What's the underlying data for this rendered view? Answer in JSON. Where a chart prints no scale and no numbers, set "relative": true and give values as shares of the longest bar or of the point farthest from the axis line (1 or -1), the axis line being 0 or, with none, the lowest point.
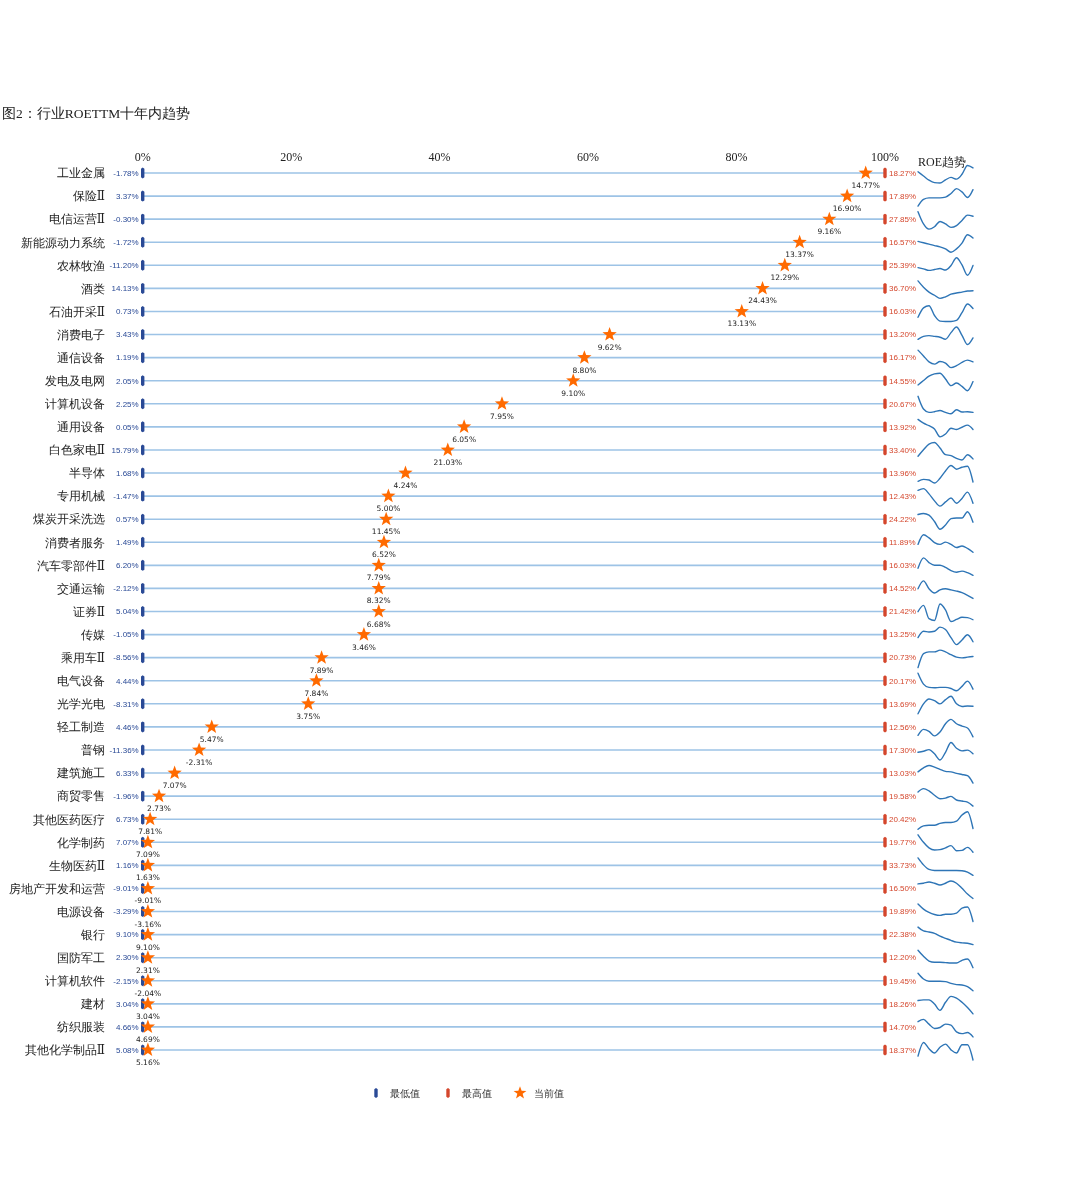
{
  "chart_data": [
    {
      "type": "scatter",
      "title": "图2：行业ROETTM十年内趋势",
      "orientation": "horizontal",
      "categories": [
        "工业金属",
        "保险Ⅱ",
        "电信运营Ⅱ",
        "新能源动力系统",
        "农林牧渔",
        "酒类",
        "石油开采Ⅱ",
        "消费电子",
        "通信设备",
        "发电及电网",
        "计算机设备",
        "通用设备",
        "白色家电Ⅱ",
        "半导体",
        "专用机械",
        "煤炭开采洗选",
        "消费者服务",
        "汽车零部件Ⅱ",
        "交通运输",
        "证券Ⅱ",
        "传媒",
        "乘用车Ⅱ",
        "电气设备",
        "光学光电",
        "轻工制造",
        "普钢",
        "建筑施工",
        "商贸零售",
        "其他医药医疗",
        "化学制药",
        "生物医药Ⅱ",
        "房地产开发和运营",
        "电源设备",
        "银行",
        "国防军工",
        "计算机软件",
        "建材",
        "纺织服装",
        "其他化学制品Ⅱ"
      ],
      "xlim": [
        0,
        100
      ],
      "xticks": [
        {
          "value": 0,
          "label": "0%"
        },
        {
          "value": 20,
          "label": "20%"
        },
        {
          "value": 40,
          "label": "40%"
        },
        {
          "value": 60,
          "label": "60%"
        },
        {
          "value": 80,
          "label": "80%"
        },
        {
          "value": 100,
          "label": "100%"
        }
      ],
      "grid": "y",
      "legend": "bottom",
      "series": [
        {
          "name": "最低值",
          "color": "#2a4a96",
          "values": [
            0,
            0,
            0,
            0,
            0,
            0,
            0,
            0,
            0,
            0,
            0,
            0,
            0,
            0,
            0,
            0,
            0,
            0,
            0,
            0,
            0,
            0,
            0,
            0,
            0,
            0,
            0,
            0,
            0,
            0,
            0,
            0,
            0,
            0,
            0,
            0,
            0,
            0,
            0
          ]
        },
        {
          "name": "最高值",
          "color": "#d4462c",
          "values": [
            100,
            100,
            100,
            100,
            100,
            100,
            100,
            100,
            100,
            100,
            100,
            100,
            100,
            100,
            100,
            100,
            100,
            100,
            100,
            100,
            100,
            100,
            100,
            100,
            100,
            100,
            100,
            100,
            100,
            100,
            100,
            100,
            100,
            100,
            100,
            100,
            100,
            100,
            100
          ]
        },
        {
          "name": "当前值",
          "color": "#ff6a00",
          "marker": "star",
          "values": [
            97.4,
            94.9,
            92.5,
            88.5,
            86.5,
            83.5,
            80.7,
            62.9,
            59.5,
            58.0,
            48.4,
            43.3,
            41.1,
            35.4,
            33.1,
            32.8,
            32.5,
            31.8,
            31.8,
            31.8,
            29.8,
            24.1,
            23.4,
            22.3,
            9.3,
            7.6,
            4.3,
            2.2,
            1.0,
            0.7,
            0.7,
            0.7,
            0.7,
            0.7,
            0.7,
            0.7,
            0.7,
            0.7,
            0.7
          ]
        }
      ],
      "annotations": [
        {
          "text": "-1.78%",
          "x": 0,
          "y": "工业金属"
        },
        {
          "text": "3.37%",
          "x": 0,
          "y": "保险Ⅱ"
        },
        {
          "text": "-0.30%",
          "x": 0,
          "y": "电信运营Ⅱ"
        },
        {
          "text": "-1.72%",
          "x": 0,
          "y": "新能源动力系统"
        },
        {
          "text": "-11.20%",
          "x": 0,
          "y": "农林牧渔"
        },
        {
          "text": "14.13%",
          "x": 0,
          "y": "酒类"
        },
        {
          "text": "0.73%",
          "x": 0,
          "y": "石油开采Ⅱ"
        },
        {
          "text": "3.43%",
          "x": 0,
          "y": "消费电子"
        },
        {
          "text": "1.19%",
          "x": 0,
          "y": "通信设备"
        },
        {
          "text": "2.05%",
          "x": 0,
          "y": "发电及电网"
        },
        {
          "text": "2.25%",
          "x": 0,
          "y": "计算机设备"
        },
        {
          "text": "0.05%",
          "x": 0,
          "y": "通用设备"
        },
        {
          "text": "15.79%",
          "x": 0,
          "y": "白色家电Ⅱ"
        },
        {
          "text": "1.68%",
          "x": 0,
          "y": "半导体"
        },
        {
          "text": "-1.47%",
          "x": 0,
          "y": "专用机械"
        },
        {
          "text": "0.57%",
          "x": 0,
          "y": "煤炭开采洗选"
        },
        {
          "text": "1.49%",
          "x": 0,
          "y": "消费者服务"
        },
        {
          "text": "6.20%",
          "x": 0,
          "y": "汽车零部件Ⅱ"
        },
        {
          "text": "-2.12%",
          "x": 0,
          "y": "交通运输"
        },
        {
          "text": "5.04%",
          "x": 0,
          "y": "证券Ⅱ"
        },
        {
          "text": "-1.05%",
          "x": 0,
          "y": "传媒"
        },
        {
          "text": "-8.56%",
          "x": 0,
          "y": "乘用车Ⅱ"
        },
        {
          "text": "4.44%",
          "x": 0,
          "y": "电气设备"
        },
        {
          "text": "-8.31%",
          "x": 0,
          "y": "光学光电"
        },
        {
          "text": "4.46%",
          "x": 0,
          "y": "轻工制造"
        },
        {
          "text": "-11.36%",
          "x": 0,
          "y": "普钢"
        },
        {
          "text": "6.33%",
          "x": 0,
          "y": "建筑施工"
        },
        {
          "text": "-1.96%",
          "x": 0,
          "y": "商贸零售"
        },
        {
          "text": "6.73%",
          "x": 0,
          "y": "其他医药医疗"
        },
        {
          "text": "7.07%",
          "x": 0,
          "y": "化学制药"
        },
        {
          "text": "1.16%",
          "x": 0,
          "y": "生物医药Ⅱ"
        },
        {
          "text": "-9.01%",
          "x": 0,
          "y": "房地产开发和运营"
        },
        {
          "text": "-3.29%",
          "x": 0,
          "y": "电源设备"
        },
        {
          "text": "9.10%",
          "x": 0,
          "y": "银行"
        },
        {
          "text": "2.30%",
          "x": 0,
          "y": "国防军工"
        },
        {
          "text": "-2.15%",
          "x": 0,
          "y": "计算机软件"
        },
        {
          "text": "3.04%",
          "x": 0,
          "y": "建材"
        },
        {
          "text": "4.66%",
          "x": 0,
          "y": "纺织服装"
        },
        {
          "text": "5.08%",
          "x": 0,
          "y": "其他化学制品Ⅱ"
        },
        {
          "text": "18.27%",
          "x": 100,
          "y": "工业金属"
        },
        {
          "text": "17.89%",
          "x": 100,
          "y": "保险Ⅱ"
        },
        {
          "text": "27.85%",
          "x": 100,
          "y": "电信运营Ⅱ"
        },
        {
          "text": "16.57%",
          "x": 100,
          "y": "新能源动力系统"
        },
        {
          "text": "25.39%",
          "x": 100,
          "y": "农林牧渔"
        },
        {
          "text": "36.70%",
          "x": 100,
          "y": "酒类"
        },
        {
          "text": "16.03%",
          "x": 100,
          "y": "石油开采Ⅱ"
        },
        {
          "text": "13.20%",
          "x": 100,
          "y": "消费电子"
        },
        {
          "text": "16.17%",
          "x": 100,
          "y": "通信设备"
        },
        {
          "text": "14.55%",
          "x": 100,
          "y": "发电及电网"
        },
        {
          "text": "20.67%",
          "x": 100,
          "y": "计算机设备"
        },
        {
          "text": "13.92%",
          "x": 100,
          "y": "通用设备"
        },
        {
          "text": "33.40%",
          "x": 100,
          "y": "白色家电Ⅱ"
        },
        {
          "text": "13.96%",
          "x": 100,
          "y": "半导体"
        },
        {
          "text": "12.43%",
          "x": 100,
          "y": "专用机械"
        },
        {
          "text": "24.22%",
          "x": 100,
          "y": "煤炭开采洗选"
        },
        {
          "text": "11.89%",
          "x": 100,
          "y": "消费者服务"
        },
        {
          "text": "16.03%",
          "x": 100,
          "y": "汽车零部件Ⅱ"
        },
        {
          "text": "14.52%",
          "x": 100,
          "y": "交通运输"
        },
        {
          "text": "21.42%",
          "x": 100,
          "y": "证券Ⅱ"
        },
        {
          "text": "13.25%",
          "x": 100,
          "y": "传媒"
        },
        {
          "text": "20.73%",
          "x": 100,
          "y": "乘用车Ⅱ"
        },
        {
          "text": "20.17%",
          "x": 100,
          "y": "电气设备"
        },
        {
          "text": "13.69%",
          "x": 100,
          "y": "光学光电"
        },
        {
          "text": "12.56%",
          "x": 100,
          "y": "轻工制造"
        },
        {
          "text": "17.30%",
          "x": 100,
          "y": "普钢"
        },
        {
          "text": "13.03%",
          "x": 100,
          "y": "建筑施工"
        },
        {
          "text": "19.58%",
          "x": 100,
          "y": "商贸零售"
        },
        {
          "text": "20.42%",
          "x": 100,
          "y": "其他医药医疗"
        },
        {
          "text": "19.77%",
          "x": 100,
          "y": "化学制药"
        },
        {
          "text": "33.73%",
          "x": 100,
          "y": "生物医药Ⅱ"
        },
        {
          "text": "16.50%",
          "x": 100,
          "y": "房地产开发和运营"
        },
        {
          "text": "19.89%",
          "x": 100,
          "y": "电源设备"
        },
        {
          "text": "22.38%",
          "x": 100,
          "y": "银行"
        },
        {
          "text": "12.20%",
          "x": 100,
          "y": "国防军工"
        },
        {
          "text": "19.45%",
          "x": 100,
          "y": "计算机软件"
        },
        {
          "text": "18.26%",
          "x": 100,
          "y": "建材"
        },
        {
          "text": "14.70%",
          "x": 100,
          "y": "纺织服装"
        },
        {
          "text": "18.37%",
          "x": 100,
          "y": "其他化学制品Ⅱ"
        },
        {
          "text": "14.77%",
          "x": 97.4,
          "y": "工业金属"
        },
        {
          "text": "16.90%",
          "x": 94.9,
          "y": "保险Ⅱ"
        },
        {
          "text": "9.16%",
          "x": 92.5,
          "y": "电信运营Ⅱ"
        },
        {
          "text": "13.37%",
          "x": 88.5,
          "y": "新能源动力系统"
        },
        {
          "text": "12.29%",
          "x": 86.5,
          "y": "农林牧渔"
        },
        {
          "text": "24.43%",
          "x": 83.5,
          "y": "酒类"
        },
        {
          "text": "13.13%",
          "x": 80.7,
          "y": "石油开采Ⅱ"
        },
        {
          "text": "9.62%",
          "x": 62.9,
          "y": "消费电子"
        },
        {
          "text": "8.80%",
          "x": 59.5,
          "y": "通信设备"
        },
        {
          "text": "9.10%",
          "x": 58.0,
          "y": "发电及电网"
        },
        {
          "text": "7.95%",
          "x": 48.4,
          "y": "计算机设备"
        },
        {
          "text": "6.05%",
          "x": 43.3,
          "y": "通用设备"
        },
        {
          "text": "21.03%",
          "x": 41.1,
          "y": "白色家电Ⅱ"
        },
        {
          "text": "4.24%",
          "x": 35.4,
          "y": "半导体"
        },
        {
          "text": "5.00%",
          "x": 33.1,
          "y": "专用机械"
        },
        {
          "text": "11.45%",
          "x": 32.8,
          "y": "煤炭开采洗选"
        },
        {
          "text": "6.52%",
          "x": 32.5,
          "y": "消费者服务"
        },
        {
          "text": "7.79%",
          "x": 31.8,
          "y": "汽车零部件Ⅱ"
        },
        {
          "text": "8.32%",
          "x": 31.8,
          "y": "交通运输"
        },
        {
          "text": "6.68%",
          "x": 31.8,
          "y": "证券Ⅱ"
        },
        {
          "text": "3.46%",
          "x": 29.8,
          "y": "传媒"
        },
        {
          "text": "7.89%",
          "x": 24.1,
          "y": "乘用车Ⅱ"
        },
        {
          "text": "7.84%",
          "x": 23.4,
          "y": "电气设备"
        },
        {
          "text": "3.75%",
          "x": 22.3,
          "y": "光学光电"
        },
        {
          "text": "5.47%",
          "x": 9.3,
          "y": "轻工制造"
        },
        {
          "text": "-2.31%",
          "x": 7.6,
          "y": "普钢"
        },
        {
          "text": "7.07%",
          "x": 4.3,
          "y": "建筑施工"
        },
        {
          "text": "2.73%",
          "x": 2.2,
          "y": "商贸零售"
        },
        {
          "text": "7.81%",
          "x": 1.0,
          "y": "其他医药医疗"
        },
        {
          "text": "7.09%",
          "x": 0.7,
          "y": "化学制药"
        },
        {
          "text": "1.63%",
          "x": 0.7,
          "y": "生物医药Ⅱ"
        },
        {
          "text": "-9.01%",
          "x": 0.7,
          "y": "房地产开发和运营"
        },
        {
          "text": "-3.16%",
          "x": 0.7,
          "y": "电源设备"
        },
        {
          "text": "9.10%",
          "x": 0.7,
          "y": "银行"
        },
        {
          "text": "2.31%",
          "x": 0.7,
          "y": "国防军工"
        },
        {
          "text": "-2.04%",
          "x": 0.7,
          "y": "计算机软件"
        },
        {
          "text": "3.04%",
          "x": 0.7,
          "y": "建材"
        },
        {
          "text": "4.69%",
          "x": 0.7,
          "y": "纺织服装"
        },
        {
          "text": "5.16%",
          "x": 0.7,
          "y": "其他化学制品Ⅱ"
        }
      ]
    },
    {
      "type": "line",
      "relative": true,
      "title": "ROE趋势",
      "categories": [
        null,
        null,
        null,
        null,
        null,
        null,
        null,
        null,
        null,
        null,
        null
      ],
      "series": [
        {
          "color": "#2e75b6",
          "values": [
            0.64,
            0.4,
            0.16,
            0.02,
            0,
            0.18,
            0.32,
            0.22,
            0.5,
            1,
            0.86
          ]
        }
      ]
    },
    {
      "type": "line",
      "relative": true,
      "categories": [
        null,
        null,
        null,
        null,
        null,
        null,
        null,
        null,
        null,
        null,
        null
      ],
      "series": [
        {
          "color": "#2e75b6",
          "values": [
            0,
            0.38,
            0.47,
            0.47,
            0.47,
            0.51,
            0.72,
            1,
            0.81,
            0.49,
            0.94
          ]
        }
      ]
    },
    {
      "type": "line",
      "relative": true,
      "categories": [
        null,
        null,
        null,
        null,
        null,
        null,
        null,
        null,
        null,
        null,
        null
      ],
      "series": [
        {
          "color": "#2e75b6",
          "values": [
            1,
            0.3,
            0,
            0.14,
            0.44,
            0.3,
            0.1,
            0.2,
            0.5,
            0.8,
            0.74
          ]
        }
      ]
    },
    {
      "type": "line",
      "relative": true,
      "categories": [
        null,
        null,
        null,
        null,
        null,
        null,
        null,
        null,
        null,
        null,
        null
      ],
      "series": [
        {
          "color": "#2e75b6",
          "values": [
            0.62,
            0.54,
            0.46,
            0.38,
            0.31,
            0.19,
            0,
            0.19,
            0.52,
            1,
            0.81
          ]
        }
      ]
    },
    {
      "type": "line",
      "relative": true,
      "categories": [
        null,
        null,
        null,
        null,
        null,
        null,
        null,
        null,
        null,
        null,
        null
      ],
      "series": [
        {
          "color": "#2e75b6",
          "values": [
            0.44,
            0.37,
            0.28,
            0.33,
            0.39,
            0.3,
            0.56,
            1,
            0.59,
            0,
            0.56
          ]
        }
      ]
    },
    {
      "type": "line",
      "relative": true,
      "categories": [
        null,
        null,
        null,
        null,
        null,
        null,
        null,
        null,
        null,
        null,
        null
      ],
      "series": [
        {
          "color": "#2e75b6",
          "values": [
            1,
            0.64,
            0.36,
            0.18,
            0,
            0.09,
            0.24,
            0.31,
            0.36,
            0.42,
            0.44
          ]
        }
      ]
    },
    {
      "type": "line",
      "relative": true,
      "categories": [
        null,
        null,
        null,
        null,
        null,
        null,
        null,
        null,
        null,
        null,
        null
      ],
      "series": [
        {
          "color": "#2e75b6",
          "values": [
            0.24,
            0.78,
            0.9,
            0.34,
            0.02,
            0,
            0,
            0.06,
            0.5,
            1,
            0.74
          ]
        }
      ]
    },
    {
      "type": "line",
      "relative": true,
      "categories": [
        null,
        null,
        null,
        null,
        null,
        null,
        null,
        null,
        null,
        null,
        null
      ],
      "series": [
        {
          "color": "#2e75b6",
          "values": [
            0.3,
            0.47,
            0.51,
            0.47,
            0.42,
            0.3,
            0.68,
            1,
            0.53,
            0,
            0.38
          ]
        }
      ]
    },
    {
      "type": "line",
      "relative": true,
      "categories": [
        null,
        null,
        null,
        null,
        null,
        null,
        null,
        null,
        null,
        null,
        null
      ],
      "series": [
        {
          "color": "#2e75b6",
          "values": [
            1,
            0.67,
            0.33,
            0.2,
            0.35,
            0.26,
            0,
            0.11,
            0.3,
            0.43,
            0.33
          ]
        }
      ]
    },
    {
      "type": "line",
      "relative": true,
      "categories": [
        null,
        null,
        null,
        null,
        null,
        null,
        null,
        null,
        null,
        null,
        null
      ],
      "series": [
        {
          "color": "#2e75b6",
          "values": [
            0.33,
            0.58,
            0.83,
            0.96,
            1,
            0.67,
            0.29,
            0.44,
            0.25,
            0,
            0.52
          ]
        }
      ]
    },
    {
      "type": "line",
      "relative": true,
      "categories": [
        null,
        null,
        null,
        null,
        null,
        null,
        null,
        null,
        null,
        null,
        null
      ],
      "series": [
        {
          "color": "#2e75b6",
          "values": [
            1,
            0.27,
            0.08,
            0.12,
            0.19,
            0.08,
            0,
            0.23,
            0.1,
            0.12,
            0.08
          ]
        }
      ]
    },
    {
      "type": "line",
      "relative": true,
      "categories": [
        null,
        null,
        null,
        null,
        null,
        null,
        null,
        null,
        null,
        null,
        null
      ],
      "series": [
        {
          "color": "#2e75b6",
          "values": [
            1,
            0.78,
            0.64,
            0.45,
            0,
            0.16,
            0.49,
            0.42,
            0.55,
            0.67,
            0.42
          ]
        }
      ]
    },
    {
      "type": "line",
      "relative": true,
      "categories": [
        null,
        null,
        null,
        null,
        null,
        null,
        null,
        null,
        null,
        null,
        null
      ],
      "series": [
        {
          "color": "#2e75b6",
          "values": [
            0.21,
            0.58,
            0.91,
            1,
            0.68,
            0.3,
            0.25,
            0.09,
            0,
            0.3,
            0.06
          ]
        }
      ]
    },
    {
      "type": "line",
      "relative": true,
      "categories": [
        null,
        null,
        null,
        null,
        null,
        null,
        null,
        null,
        null,
        null,
        null
      ],
      "series": [
        {
          "color": "#2e75b6",
          "values": [
            0.1,
            0.21,
            0.17,
            0,
            0.27,
            0.69,
            1,
            0.79,
            0.9,
            0.96,
            0.06
          ]
        }
      ]
    },
    {
      "type": "line",
      "relative": true,
      "categories": [
        null,
        null,
        null,
        null,
        null,
        null,
        null,
        null,
        null,
        null,
        null
      ],
      "series": [
        {
          "color": "#2e75b6",
          "values": [
            0.9,
            1,
            0.7,
            0.3,
            0,
            0.24,
            0.46,
            0.16,
            0.44,
            0.8,
            0.16
          ]
        }
      ]
    },
    {
      "type": "line",
      "relative": true,
      "categories": [
        null,
        null,
        null,
        null,
        null,
        null,
        null,
        null,
        null,
        null,
        null
      ],
      "series": [
        {
          "color": "#2e75b6",
          "values": [
            0.84,
            0.9,
            0.8,
            0.44,
            0,
            0.24,
            0.6,
            0.64,
            0.64,
            1,
            0.4
          ]
        }
      ]
    },
    {
      "type": "line",
      "relative": true,
      "categories": [
        null,
        null,
        null,
        null,
        null,
        null,
        null,
        null,
        null,
        null,
        null
      ],
      "series": [
        {
          "color": "#2e75b6",
          "values": [
            0.45,
            1,
            0.82,
            0.55,
            0.45,
            0.58,
            0.45,
            0.27,
            0.36,
            0.22,
            0
          ]
        }
      ]
    },
    {
      "type": "line",
      "relative": true,
      "categories": [
        null,
        null,
        null,
        null,
        null,
        null,
        null,
        null,
        null,
        null,
        null
      ],
      "series": [
        {
          "color": "#2e75b6",
          "values": [
            0.4,
            1,
            0.73,
            0.58,
            0.58,
            0.45,
            0.27,
            0.18,
            0.24,
            0.15,
            0
          ]
        }
      ]
    },
    {
      "type": "line",
      "relative": true,
      "categories": [
        null,
        null,
        null,
        null,
        null,
        null,
        null,
        null,
        null,
        null,
        null
      ],
      "series": [
        {
          "color": "#2e75b6",
          "values": [
            0.55,
            1,
            0.55,
            0.31,
            0.49,
            0.55,
            0.49,
            0.42,
            0.33,
            0.18,
            0
          ]
        }
      ]
    },
    {
      "type": "line",
      "relative": true,
      "categories": [
        null,
        null,
        null,
        null,
        null,
        null,
        null,
        null,
        null,
        null,
        null
      ],
      "series": [
        {
          "color": "#2e75b6",
          "values": [
            0.56,
            0.92,
            0.16,
            0.06,
            1,
            0.66,
            0,
            0.12,
            0.24,
            0.22,
            0.1
          ]
        }
      ]
    },
    {
      "type": "line",
      "relative": true,
      "categories": [
        null,
        null,
        null,
        null,
        null,
        null,
        null,
        null,
        null,
        null,
        null
      ],
      "series": [
        {
          "color": "#2e75b6",
          "values": [
            0.4,
            0.76,
            0.72,
            0.76,
            1,
            0.86,
            0.4,
            0,
            0.26,
            0.56,
            0.16
          ]
        }
      ]
    },
    {
      "type": "line",
      "relative": true,
      "categories": [
        null,
        null,
        null,
        null,
        null,
        null,
        null,
        null,
        null,
        null,
        null
      ],
      "series": [
        {
          "color": "#2e75b6",
          "values": [
            0,
            0.8,
            0.9,
            0.9,
            1,
            0.9,
            0.74,
            0.6,
            0.56,
            0.6,
            0.64
          ]
        }
      ]
    },
    {
      "type": "line",
      "relative": true,
      "categories": [
        null,
        null,
        null,
        null,
        null,
        null,
        null,
        null,
        null,
        null,
        null
      ],
      "series": [
        {
          "color": "#2e75b6",
          "values": [
            1,
            0.38,
            0.19,
            0.17,
            0.19,
            0.19,
            0.13,
            0,
            0.25,
            0.55,
            0.09
          ]
        }
      ]
    },
    {
      "type": "line",
      "relative": true,
      "categories": [
        null,
        null,
        null,
        null,
        null,
        null,
        null,
        null,
        null,
        null,
        null
      ],
      "series": [
        {
          "color": "#2e75b6",
          "values": [
            0,
            0.57,
            0.85,
            0.75,
            0.57,
            0.81,
            1,
            0.57,
            0.42,
            0.45,
            0.43
          ]
        }
      ]
    },
    {
      "type": "line",
      "relative": true,
      "categories": [
        null,
        null,
        null,
        null,
        null,
        null,
        null,
        null,
        null,
        null,
        null
      ],
      "series": [
        {
          "color": "#2e75b6",
          "values": [
            0.09,
            0.43,
            0.32,
            0.06,
            0.28,
            0.75,
            1,
            0.75,
            0.62,
            0.51,
            0
          ]
        }
      ]
    },
    {
      "type": "line",
      "relative": true,
      "categories": [
        null,
        null,
        null,
        null,
        null,
        null,
        null,
        null,
        null,
        null,
        null
      ],
      "series": [
        {
          "color": "#2e75b6",
          "values": [
            0.44,
            0.5,
            0.59,
            0.35,
            0,
            0.44,
            1,
            0.67,
            0.52,
            0.56,
            0.35
          ]
        }
      ]
    },
    {
      "type": "line",
      "relative": true,
      "categories": [
        null,
        null,
        null,
        null,
        null,
        null,
        null,
        null,
        null,
        null,
        null
      ],
      "series": [
        {
          "color": "#2e75b6",
          "values": [
            0.64,
            0.87,
            1,
            0.91,
            0.78,
            0.67,
            0.64,
            0.55,
            0.49,
            0.42,
            0
          ]
        }
      ]
    },
    {
      "type": "line",
      "relative": true,
      "categories": [
        null,
        null,
        null,
        null,
        null,
        null,
        null,
        null,
        null,
        null,
        null
      ],
      "series": [
        {
          "color": "#2e75b6",
          "values": [
            0.81,
            1,
            0.87,
            0.62,
            0.42,
            0.46,
            0.56,
            0.35,
            0.29,
            0.23,
            0
          ]
        }
      ]
    },
    {
      "type": "line",
      "relative": true,
      "categories": [
        null,
        null,
        null,
        null,
        null,
        null,
        null,
        null,
        null,
        null,
        null
      ],
      "series": [
        {
          "color": "#2e75b6",
          "values": [
            0,
            0.19,
            0.23,
            0.23,
            0.33,
            0.38,
            0.38,
            0.46,
            0.81,
            1,
            0.04
          ]
        }
      ]
    },
    {
      "type": "line",
      "relative": true,
      "categories": [
        null,
        null,
        null,
        null,
        null,
        null,
        null,
        null,
        null,
        null,
        null
      ],
      "series": [
        {
          "color": "#2e75b6",
          "values": [
            1,
            0.57,
            0.25,
            0.13,
            0.15,
            0.25,
            0.38,
            0.09,
            0.11,
            0.28,
            0
          ]
        }
      ]
    },
    {
      "type": "line",
      "relative": true,
      "categories": [
        null,
        null,
        null,
        null,
        null,
        null,
        null,
        null,
        null,
        null,
        null
      ],
      "series": [
        {
          "color": "#2e75b6",
          "values": [
            1,
            0.6,
            0.34,
            0.28,
            0.28,
            0.28,
            0.28,
            0.28,
            0.26,
            0.18,
            0
          ]
        }
      ]
    },
    {
      "type": "line",
      "relative": true,
      "categories": [
        null,
        null,
        null,
        null,
        null,
        null,
        null,
        null,
        null,
        null,
        null
      ],
      "series": [
        {
          "color": "#2e75b6",
          "values": [
            0.83,
            0.87,
            0.94,
            0.87,
            0.77,
            0.87,
            1,
            0.87,
            0.58,
            0.25,
            0
          ]
        }
      ]
    },
    {
      "type": "line",
      "relative": true,
      "categories": [
        null,
        null,
        null,
        null,
        null,
        null,
        null,
        null,
        null,
        null,
        null
      ],
      "series": [
        {
          "color": "#2e75b6",
          "values": [
            1,
            0.71,
            0.52,
            0.4,
            0.35,
            0.42,
            0.42,
            0.48,
            0.77,
            0.83,
            0
          ]
        }
      ]
    },
    {
      "type": "line",
      "relative": true,
      "categories": [
        null,
        null,
        null,
        null,
        null,
        null,
        null,
        null,
        null,
        null,
        null
      ],
      "series": [
        {
          "color": "#2e75b6",
          "values": [
            1,
            0.78,
            0.72,
            0.64,
            0.48,
            0.36,
            0.24,
            0.14,
            0.1,
            0.08,
            0
          ]
        }
      ]
    },
    {
      "type": "line",
      "relative": true,
      "categories": [
        null,
        null,
        null,
        null,
        null,
        null,
        null,
        null,
        null,
        null,
        null
      ],
      "series": [
        {
          "color": "#2e75b6",
          "values": [
            1,
            0.65,
            0.38,
            0.31,
            0.31,
            0.29,
            0.27,
            0.27,
            0.42,
            0.5,
            0
          ]
        }
      ]
    },
    {
      "type": "line",
      "relative": true,
      "categories": [
        null,
        null,
        null,
        null,
        null,
        null,
        null,
        null,
        null,
        null,
        null
      ],
      "series": [
        {
          "color": "#2e75b6",
          "values": [
            1,
            0.67,
            0.54,
            0.54,
            0.54,
            0.52,
            0.42,
            0.35,
            0.33,
            0.23,
            0
          ]
        }
      ]
    },
    {
      "type": "line",
      "relative": true,
      "categories": [
        null,
        null,
        null,
        null,
        null,
        null,
        null,
        null,
        null,
        null,
        null
      ],
      "series": [
        {
          "color": "#2e75b6",
          "values": [
            0.76,
            0.8,
            0.8,
            0.56,
            0.2,
            0.66,
            1,
            0.9,
            0.66,
            0.36,
            0
          ]
        }
      ]
    },
    {
      "type": "line",
      "relative": true,
      "categories": [
        null,
        null,
        null,
        null,
        null,
        null,
        null,
        null,
        null,
        null,
        null
      ],
      "series": [
        {
          "color": "#2e75b6",
          "values": [
            0.87,
            1,
            0.73,
            0.48,
            0.54,
            0.73,
            0.67,
            0.29,
            0.19,
            0.25,
            0
          ]
        }
      ]
    },
    {
      "type": "line",
      "relative": true,
      "categories": [
        null,
        null,
        null,
        null,
        null,
        null,
        null,
        null,
        null,
        null,
        null
      ],
      "series": [
        {
          "color": "#2e75b6",
          "values": [
            0.22,
            1,
            0.64,
            0.4,
            0.73,
            0.91,
            0.58,
            0.4,
            0.87,
            0.87,
            0
          ]
        }
      ]
    }
  ]
}
